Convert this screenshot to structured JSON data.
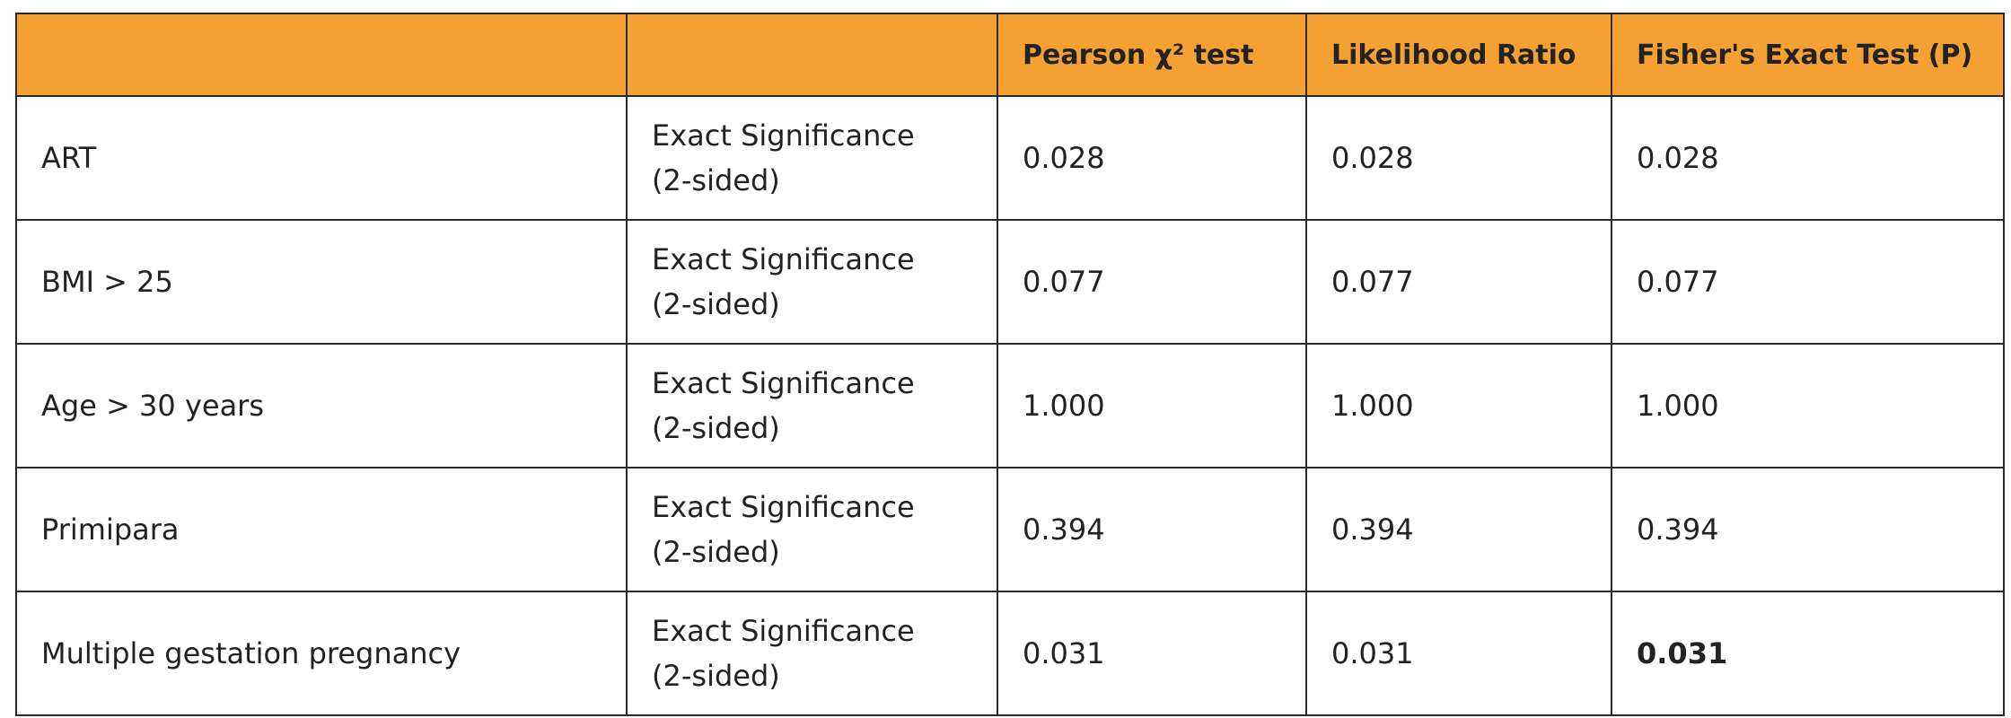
{
  "table": {
    "header": [
      "Pearson χ² test",
      "Likelihood Ratio",
      "Fisher's Exact Test (P)"
    ],
    "rows": [
      [
        "ART",
        "Exact Significance (2-sided)",
        "0.028",
        "0.028",
        "0.028"
      ],
      [
        "BMI > 25",
        "Exact Significance (2-sided)",
        "0.077",
        "0.077",
        "0.077"
      ],
      [
        "Age > 30 years",
        "Exact Significance (2-sided)",
        "1.000",
        "1.000",
        "1.000"
      ],
      [
        "Primipara",
        "Exact Significance (2-sided)",
        "0.394",
        "0.394",
        "0.394"
      ],
      [
        "Multiple gestation pregnancy",
        "Exact Significance (2-sided)",
        "0.031",
        "0.031",
        "0.031"
      ]
    ]
  }
}
